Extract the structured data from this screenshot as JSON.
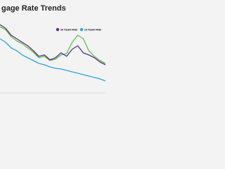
{
  "chart_data": {
    "type": "line",
    "title": "gage Rate Trends",
    "x": [
      0,
      1,
      2,
      3,
      4,
      5,
      6,
      7,
      8,
      9,
      10,
      11,
      12,
      13,
      14,
      15,
      16,
      17,
      18,
      19
    ],
    "xlim": [
      0,
      19
    ],
    "ylim": [
      2,
      8
    ],
    "series": [
      {
        "name": "30 YEAR FRM",
        "color": "#5a2d86",
        "values": [
          7.58,
          7.28,
          6.68,
          6.38,
          6.08,
          5.78,
          5.36,
          4.88,
          5.0,
          4.58,
          4.76,
          5.18,
          4.88,
          5.48,
          5.78,
          5.18,
          5.0,
          4.76,
          4.4,
          4.16
        ]
      },
      {
        "name": "15 YEAR FRM",
        "color": "#2aa7df",
        "values": [
          6.38,
          6.08,
          5.6,
          5.36,
          5.0,
          4.76,
          4.52,
          4.28,
          4.16,
          3.98,
          3.86,
          3.8,
          3.68,
          3.56,
          3.44,
          3.32,
          3.2,
          3.08,
          2.96,
          2.78
        ]
      },
      {
        "color": "#5cbf4a",
        "values": [
          7.4,
          7.16,
          6.56,
          6.2,
          5.96,
          5.6,
          5.24,
          4.76,
          4.88,
          4.52,
          4.64,
          5.0,
          5.12,
          6.08,
          6.68,
          6.38,
          5.36,
          4.88,
          4.52,
          4.28
        ]
      }
    ]
  }
}
